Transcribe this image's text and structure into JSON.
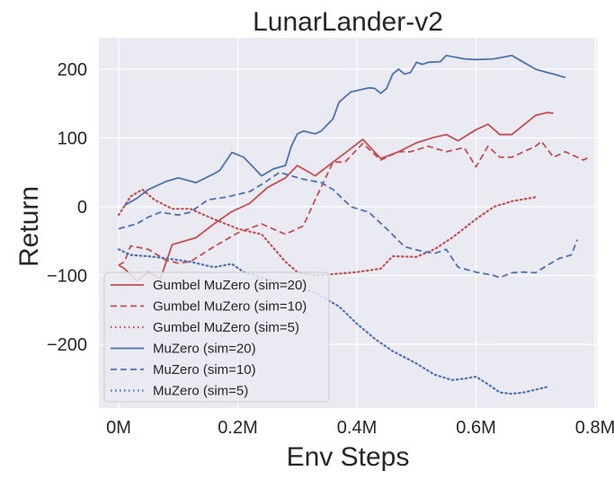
{
  "chart_data": {
    "type": "line",
    "title": "LunarLander-v2",
    "xlabel": "Env Steps",
    "ylabel": "Return",
    "xlim": [
      -0.035,
      0.8
    ],
    "ylim": [
      -297,
      243
    ],
    "x_ticks": [
      0,
      0.2,
      0.4,
      0.6,
      0.8
    ],
    "x_tick_labels": [
      "0M",
      "0.2M",
      "0.4M",
      "0.6M",
      "0.8M"
    ],
    "y_ticks": [
      -200,
      -100,
      0,
      100,
      200
    ],
    "y_tick_labels": [
      "−200",
      "−100",
      "0",
      "100",
      "200"
    ],
    "grid": true,
    "background": "#EAEAF2",
    "legend_position": "lower left",
    "series": [
      {
        "name": "Gumbel MuZero (sim=20)",
        "color": "#C44E52",
        "style": "solid",
        "x": [
          0.0,
          0.01,
          0.03,
          0.05,
          0.07,
          0.09,
          0.13,
          0.16,
          0.19,
          0.22,
          0.25,
          0.28,
          0.3,
          0.33,
          0.36,
          0.38,
          0.41,
          0.44,
          0.47,
          0.5,
          0.53,
          0.55,
          0.57,
          0.6,
          0.62,
          0.64,
          0.66,
          0.7,
          0.72,
          0.73
        ],
        "y": [
          -85,
          -90,
          -108,
          -95,
          -105,
          -55,
          -45,
          -25,
          -7,
          5,
          28,
          42,
          60,
          45,
          65,
          78,
          98,
          70,
          80,
          93,
          101,
          105,
          96,
          112,
          120,
          105,
          105,
          133,
          137,
          136
        ]
      },
      {
        "name": "Gumbel MuZero (sim=10)",
        "color": "#C44E52",
        "style": "dashed",
        "x": [
          0.0,
          0.01,
          0.02,
          0.05,
          0.08,
          0.1,
          0.12,
          0.16,
          0.2,
          0.24,
          0.28,
          0.31,
          0.33,
          0.36,
          0.38,
          0.41,
          0.44,
          0.47,
          0.49,
          0.52,
          0.55,
          0.58,
          0.6,
          0.62,
          0.64,
          0.66,
          0.7,
          0.71,
          0.73,
          0.75,
          0.78,
          0.79
        ],
        "y": [
          -85,
          -80,
          -57,
          -62,
          -78,
          -82,
          -80,
          -58,
          -38,
          -25,
          -40,
          -28,
          10,
          65,
          65,
          92,
          68,
          80,
          80,
          88,
          80,
          86,
          58,
          88,
          72,
          72,
          88,
          95,
          72,
          80,
          68,
          72
        ]
      },
      {
        "name": "Gumbel MuZero (sim=5)",
        "color": "#C44E52",
        "style": "dotted",
        "x": [
          0.0,
          0.02,
          0.04,
          0.06,
          0.09,
          0.12,
          0.16,
          0.2,
          0.24,
          0.26,
          0.28,
          0.3,
          0.33,
          0.36,
          0.4,
          0.44,
          0.46,
          0.5,
          0.53,
          0.56,
          0.6,
          0.63,
          0.66,
          0.7
        ],
        "y": [
          -12,
          15,
          25,
          10,
          -3,
          -3,
          -18,
          -32,
          -40,
          -60,
          -80,
          -95,
          -100,
          -98,
          -95,
          -90,
          -72,
          -73,
          -62,
          -45,
          -18,
          0,
          8,
          14
        ]
      },
      {
        "name": "MuZero (sim=20)",
        "color": "#4C72B0",
        "style": "solid",
        "x": [
          0.01,
          0.03,
          0.05,
          0.08,
          0.1,
          0.13,
          0.16,
          0.17,
          0.19,
          0.21,
          0.24,
          0.26,
          0.28,
          0.29,
          0.3,
          0.31,
          0.33,
          0.34,
          0.36,
          0.37,
          0.39,
          0.41,
          0.42,
          0.43,
          0.44,
          0.45,
          0.46,
          0.47,
          0.48,
          0.49,
          0.5,
          0.51,
          0.52,
          0.54,
          0.55,
          0.58,
          0.6,
          0.63,
          0.66,
          0.68,
          0.7,
          0.72,
          0.73,
          0.75
        ],
        "y": [
          2,
          12,
          25,
          37,
          42,
          35,
          48,
          53,
          79,
          72,
          45,
          55,
          60,
          88,
          106,
          110,
          106,
          110,
          128,
          152,
          167,
          171,
          173,
          172,
          165,
          172,
          193,
          200,
          193,
          195,
          210,
          207,
          210,
          211,
          220,
          215,
          214,
          215,
          220,
          210,
          200,
          195,
          193,
          188
        ]
      },
      {
        "name": "MuZero (sim=10)",
        "color": "#4C72B0",
        "style": "dashed",
        "x": [
          0.0,
          0.03,
          0.05,
          0.07,
          0.1,
          0.12,
          0.15,
          0.18,
          0.22,
          0.25,
          0.27,
          0.29,
          0.31,
          0.34,
          0.36,
          0.39,
          0.42,
          0.45,
          0.48,
          0.51,
          0.53,
          0.55,
          0.57,
          0.6,
          0.63,
          0.64,
          0.66,
          0.68,
          0.7,
          0.72,
          0.74,
          0.76,
          0.77
        ],
        "y": [
          -32,
          -25,
          -15,
          -8,
          -12,
          -8,
          10,
          14,
          22,
          38,
          50,
          45,
          40,
          35,
          25,
          0,
          -8,
          -32,
          -58,
          -65,
          -68,
          -62,
          -88,
          -95,
          -100,
          -103,
          -96,
          -95,
          -96,
          -85,
          -75,
          -70,
          -48
        ]
      },
      {
        "name": "MuZero (sim=5)",
        "color": "#4C72B0",
        "style": "dotted",
        "x": [
          0.0,
          0.02,
          0.05,
          0.08,
          0.12,
          0.16,
          0.19,
          0.21,
          0.24,
          0.28,
          0.33,
          0.37,
          0.4,
          0.43,
          0.46,
          0.5,
          0.53,
          0.56,
          0.58,
          0.6,
          0.62,
          0.64,
          0.66,
          0.68,
          0.7,
          0.72
        ],
        "y": [
          -62,
          -70,
          -72,
          -75,
          -80,
          -88,
          -83,
          -95,
          -103,
          -112,
          -125,
          -145,
          -170,
          -192,
          -210,
          -228,
          -244,
          -252,
          -250,
          -247,
          -258,
          -270,
          -272,
          -270,
          -266,
          -262
        ]
      }
    ]
  }
}
